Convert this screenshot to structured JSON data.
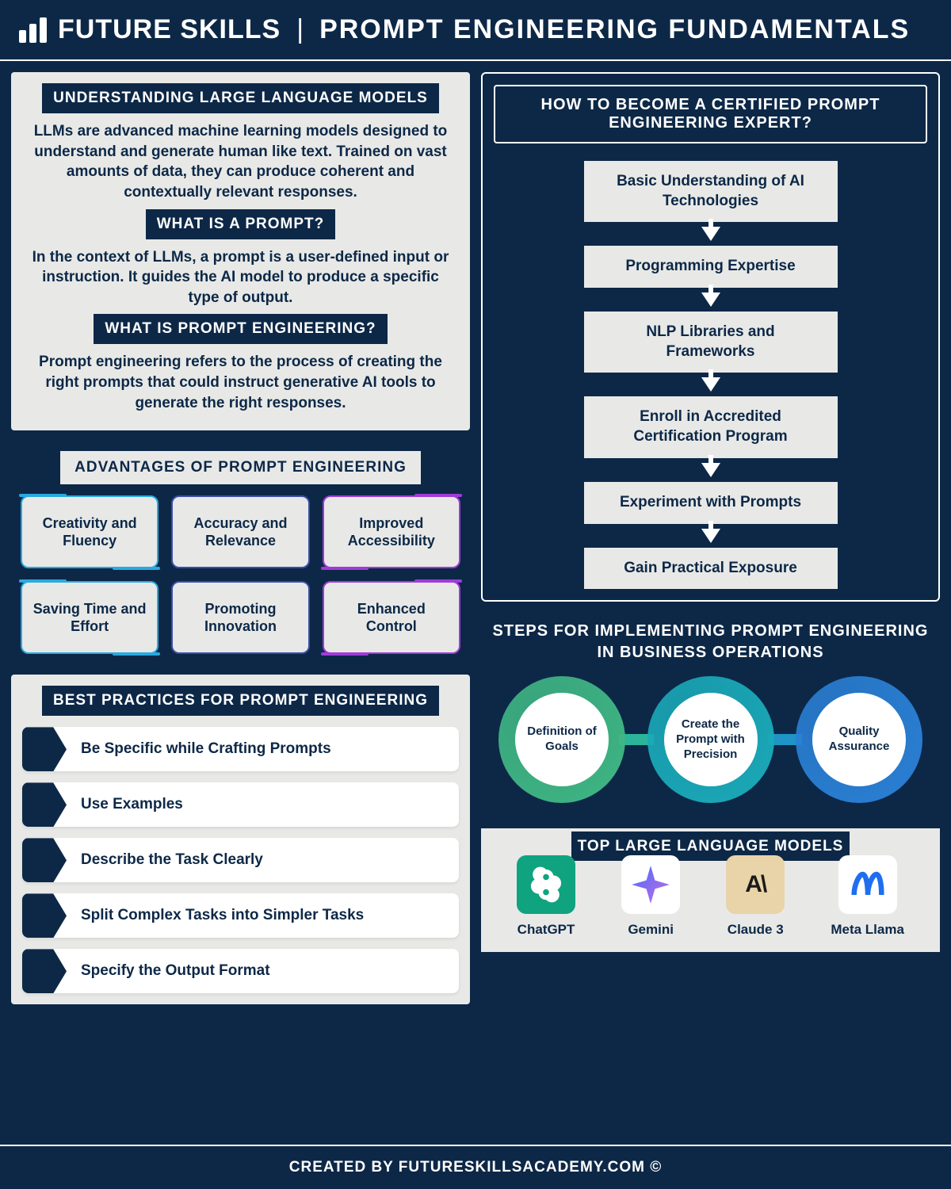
{
  "colors": {
    "bg_dark": "#0d2847",
    "bg_light": "#e8e9e7",
    "white": "#ffffff",
    "cyan": "#2aa9e0",
    "blue_mid": "#3b4ea8",
    "purple": "#a03bd8",
    "ring_green": "#3fb684",
    "ring_teal": "#1aa9b8",
    "ring_blue": "#2a7fd4",
    "connector_green_teal": "#2bb59a",
    "connector_teal_blue": "#1f94c6",
    "chatgpt_bg": "#10a37f",
    "claude_bg": "#e8d4a8",
    "claude_fg": "#1a1a1a",
    "gemini_a": "#4a6cf7",
    "gemini_b": "#c36de8",
    "meta_color": "#1f6ef0"
  },
  "header": {
    "brand": "FUTURE SKILLS",
    "title": "PROMPT ENGINEERING FUNDAMENTALS"
  },
  "definitions": {
    "s1_title": "UNDERSTANDING LARGE LANGUAGE MODELS",
    "s1_body": "LLMs are advanced machine learning models designed to understand and generate human like text. Trained on vast amounts of data, they can produce coherent and contextually relevant responses.",
    "s2_title": "WHAT IS A PROMPT?",
    "s2_body": "In the context of LLMs, a prompt is a user-defined input or instruction. It guides the AI model to produce a specific type of output.",
    "s3_title": "WHAT IS PROMPT ENGINEERING?",
    "s3_body": "Prompt engineering refers to the process of creating the right prompts that could instruct generative AI tools to generate the right responses."
  },
  "advantages": {
    "title": "ADVANTAGES OF PROMPT ENGINEERING",
    "cards": [
      {
        "label": "Creativity and Fluency",
        "accent": "cyan"
      },
      {
        "label": "Accuracy and Relevance",
        "accent": "blue"
      },
      {
        "label": "Improved Accessibility",
        "accent": "purple"
      },
      {
        "label": "Saving Time and Effort",
        "accent": "cyan"
      },
      {
        "label": "Promoting Innovation",
        "accent": "blue"
      },
      {
        "label": "Enhanced Control",
        "accent": "purple"
      }
    ]
  },
  "best_practices": {
    "title": "BEST PRACTICES FOR PROMPT ENGINEERING",
    "items": [
      "Be Specific while Crafting Prompts",
      "Use Examples",
      "Describe the Task Clearly",
      "Split Complex Tasks into Simpler Tasks",
      "Specify the Output Format"
    ]
  },
  "certification": {
    "title": "HOW TO BECOME A CERTIFIED PROMPT ENGINEERING EXPERT?",
    "steps": [
      "Basic Understanding of AI Technologies",
      "Programming Expertise",
      "NLP Libraries and Frameworks",
      "Enroll in Accredited Certification Program",
      "Experiment with Prompts",
      "Gain Practical Exposure"
    ]
  },
  "business_steps": {
    "title": "STEPS FOR IMPLEMENTING PROMPT ENGINEERING IN BUSINESS OPERATIONS",
    "circles": [
      {
        "label": "Definition of Goals",
        "ring": "#3fb684"
      },
      {
        "label": "Create the Prompt with Precision",
        "ring": "#1aa9b8"
      },
      {
        "label": "Quality Assurance",
        "ring": "#2a7fd4"
      }
    ]
  },
  "llms": {
    "title": "TOP LARGE LANGUAGE MODELS",
    "items": [
      "ChatGPT",
      "Gemini",
      "Claude 3",
      "Meta Llama"
    ]
  },
  "footer": {
    "created_by_prefix": "CREATED BY ",
    "site": "FUTURESKILLSACADEMY.COM ©"
  }
}
